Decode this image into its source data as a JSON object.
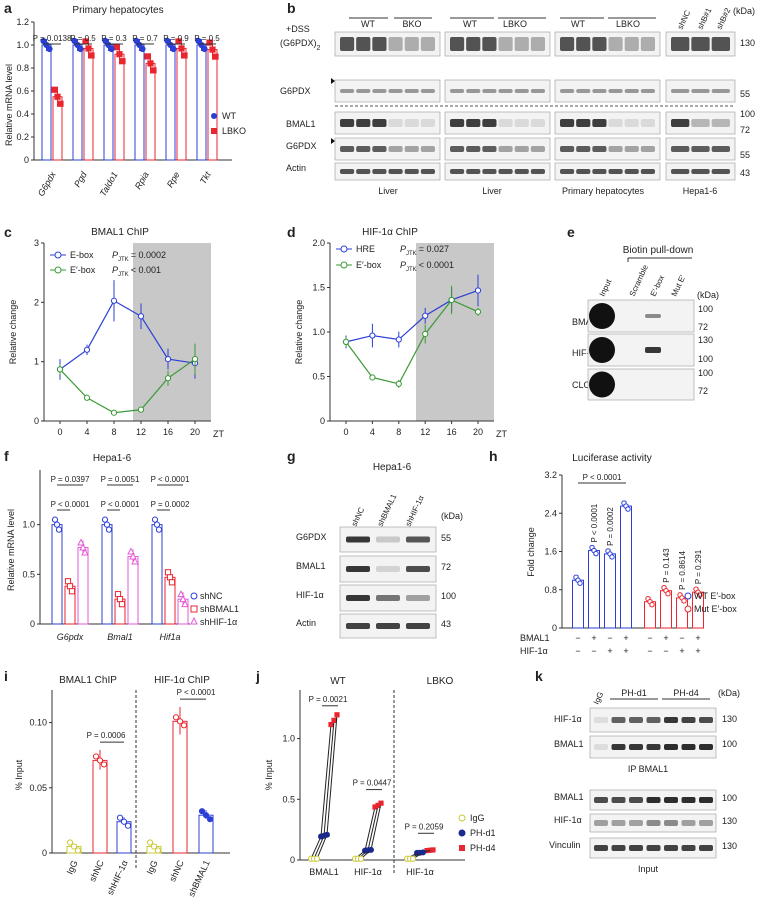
{
  "colors": {
    "blue": "#2b3fd6",
    "red": "#e8262f",
    "green": "#3a9a35",
    "pink": "#e35bd7",
    "yellow": "#c9c93a",
    "navy": "#1a2a8c",
    "gray": "#c8c8c8"
  },
  "a": {
    "letter": "a",
    "title": "Primary hepatocytes",
    "ylabel": "Relative mRNA level",
    "genes": [
      "G6pdx",
      "Pgd",
      "Taldo1",
      "Rpia",
      "Rpe",
      "Tkt"
    ],
    "wt": [
      1.0,
      1.0,
      1.0,
      1.0,
      1.0,
      1.0
    ],
    "lbko": [
      0.55,
      0.97,
      0.92,
      0.84,
      0.97,
      0.96
    ],
    "yticks": [
      "0",
      "0.2",
      "0.4",
      "0.6",
      "0.8",
      "1.0",
      "1.2"
    ],
    "pvals": [
      "P = 0.0138",
      "P = 0.5",
      "P = 0.3",
      "P = 0.7",
      "P = 0.9",
      "P = 0.5"
    ],
    "legend": [
      "WT",
      "LBKO"
    ]
  },
  "b": {
    "letter": "b",
    "dss": "+DSS",
    "dimer": "(G6PDX)",
    "dimer_sub": "2",
    "kda": "(kDa)",
    "g6pdx": "G6PDX",
    "bmal1": "BMAL1",
    "actin": "Actin",
    "groups": [
      {
        "a": "WT",
        "b": "BKO",
        "cap": "Liver"
      },
      {
        "a": "WT",
        "b": "LBKO",
        "cap": "Liver"
      },
      {
        "a": "WT",
        "b": "LBKO",
        "cap": "Primary hepatocytes"
      },
      {
        "cap": "Hepa1-6"
      }
    ],
    "sh": [
      "shNC",
      "shB#1",
      "shB#2"
    ],
    "mw_top": [
      "130",
      "55"
    ],
    "mw_bot": [
      "100",
      "72",
      "55",
      "43"
    ]
  },
  "c": {
    "letter": "c",
    "title": "BMAL1 ChIP",
    "ylabel": "Relative change",
    "x": [
      0,
      4,
      8,
      12,
      16,
      20
    ],
    "ebox": [
      1.0,
      1.38,
      2.33,
      2.03,
      1.2,
      1.12
    ],
    "eprime": [
      1.0,
      0.45,
      0.16,
      0.22,
      0.83,
      1.2
    ],
    "legend": [
      "E-box",
      "E′-box"
    ],
    "p1": "P",
    "p1s": "JTK",
    "p1v": "= 0.0002",
    "p2v": "< 0.001",
    "zt": "ZT",
    "yticks": [
      "0",
      "1",
      "2",
      "3"
    ],
    "xticks": [
      "0",
      "4",
      "8",
      "12",
      "16",
      "20"
    ]
  },
  "d": {
    "letter": "d",
    "title": "HIF-1α ChIP",
    "ylabel": "Relative change",
    "x": [
      0,
      4,
      8,
      12,
      16,
      20
    ],
    "hre": [
      1.0,
      1.08,
      1.03,
      1.33,
      1.53,
      1.65
    ],
    "eprime": [
      1.0,
      0.55,
      0.47,
      1.1,
      1.53,
      1.38
    ],
    "legend": [
      "HRE",
      "E′-box"
    ],
    "p1v": "= 0.027",
    "p2v": "< 0.0001",
    "p1": "P",
    "p1s": "JTK",
    "zt": "ZT",
    "yticks": [
      "0",
      "0.5",
      "1.0",
      "1.5",
      "2.0"
    ],
    "xticks": [
      "0",
      "4",
      "8",
      "12",
      "16",
      "20"
    ]
  },
  "e": {
    "letter": "e",
    "title": "Biotin pull-down",
    "cols": [
      "Input",
      "Scramble",
      "E′-box",
      "Mut E′"
    ],
    "rows": [
      "BMAL1",
      "HIF-1α",
      "CLOCK"
    ],
    "kda": "(kDa)",
    "mw": [
      [
        "100",
        "72"
      ],
      [
        "130",
        "100"
      ],
      [
        "100",
        "72"
      ]
    ]
  },
  "f": {
    "letter": "f",
    "title": "Hepa1-6",
    "ylabel": "Relative mRNA level",
    "genes": [
      "G6pdx",
      "Bmal1",
      "Hif1a"
    ],
    "shnc": [
      1.0,
      1.0,
      1.0
    ],
    "shb": [
      0.38,
      0.25,
      0.47
    ],
    "shh": [
      0.77,
      0.68,
      0.25
    ],
    "yticks": [
      "0",
      "0.5",
      "1.0"
    ],
    "legend": [
      "shNC",
      "shBMAL1",
      "shHIF-1α"
    ],
    "p_top": [
      "P = 0.0397",
      "P = 0.0051",
      "P < 0.0001"
    ],
    "p_bot": [
      "P < 0.0001",
      "P < 0.0001",
      "P = 0.0002"
    ]
  },
  "g": {
    "letter": "g",
    "title": "Hepa1-6",
    "cols": [
      "shNC",
      "shBMAL1",
      "shHIF-1α"
    ],
    "rows": [
      "G6PDX",
      "BMAL1",
      "HIF-1α",
      "Actin"
    ],
    "mw": [
      "55",
      "72",
      "100",
      "43"
    ],
    "kda": "(kDa)"
  },
  "h": {
    "letter": "h",
    "title": "Luciferase activity",
    "ylabel": "Fold change",
    "wt": [
      1.0,
      1.62,
      1.55,
      2.55
    ],
    "mut": [
      0.55,
      0.78,
      0.63,
      0.75
    ],
    "yticks": [
      "0",
      "0.8",
      "1.6",
      "2.4",
      "3.2"
    ],
    "top_p": "P < 0.0001",
    "wt_p": [
      "P < 0.0001",
      "P = 0.0002"
    ],
    "mut_p": [
      "P = 0.143",
      "P = 0.8614",
      "P = 0.291"
    ],
    "legend": [
      "WT E′-box",
      "Mut E′-box"
    ],
    "bmal1_label": "BMAL1",
    "hif_label": "HIF-1α",
    "bmal1_signs": [
      "−",
      "+",
      "−",
      "+",
      "−",
      "+",
      "−",
      "+"
    ],
    "hif_signs": [
      "−",
      "−",
      "+",
      "+",
      "−",
      "−",
      "+",
      "+"
    ]
  },
  "i": {
    "letter": "i",
    "titles": [
      "BMAL1 ChIP",
      "HIF-1α ChIP"
    ],
    "ylabel": "% Input",
    "cats": [
      "IgG",
      "shNC",
      "shHIF-1α",
      "IgG",
      "shNC",
      "shBMAL1"
    ],
    "values": [
      0.005,
      0.071,
      0.024,
      0.005,
      0.101,
      0.029
    ],
    "yticks": [
      "0",
      "0.05",
      "0.10"
    ],
    "pvals": [
      "P = 0.0006",
      "P < 0.0001"
    ]
  },
  "j": {
    "letter": "j",
    "titles": [
      "WT",
      "LBKO"
    ],
    "ylabel": "% Input",
    "cats": [
      "BMAL1",
      "HIF-1α",
      "HIF-1α"
    ],
    "igg": [
      0.01,
      0.01,
      0.01
    ],
    "pd1": [
      0.2,
      0.08,
      0.06
    ],
    "pd4": [
      1.15,
      0.45,
      0.08
    ],
    "yticks": [
      "0",
      "0.5",
      "1.0"
    ],
    "pvals": [
      "P = 0.0021",
      "P = 0.0447",
      "P = 0.2059"
    ],
    "legend": [
      "IgG",
      "PH-d1",
      "PH-d4"
    ]
  },
  "k": {
    "letter": "k",
    "cols": [
      "IgG",
      "PH-d1",
      "PH-d4"
    ],
    "ip_rows": [
      "HIF-1α",
      "BMAL1"
    ],
    "ip_mw": [
      "130",
      "100"
    ],
    "ip_label": "IP  BMAL1",
    "in_rows": [
      "BMAL1",
      "HIF-1α",
      "Vinculin"
    ],
    "in_mw": [
      "100",
      "130",
      "130"
    ],
    "input_label": "Input",
    "kda": "(kDa)"
  }
}
